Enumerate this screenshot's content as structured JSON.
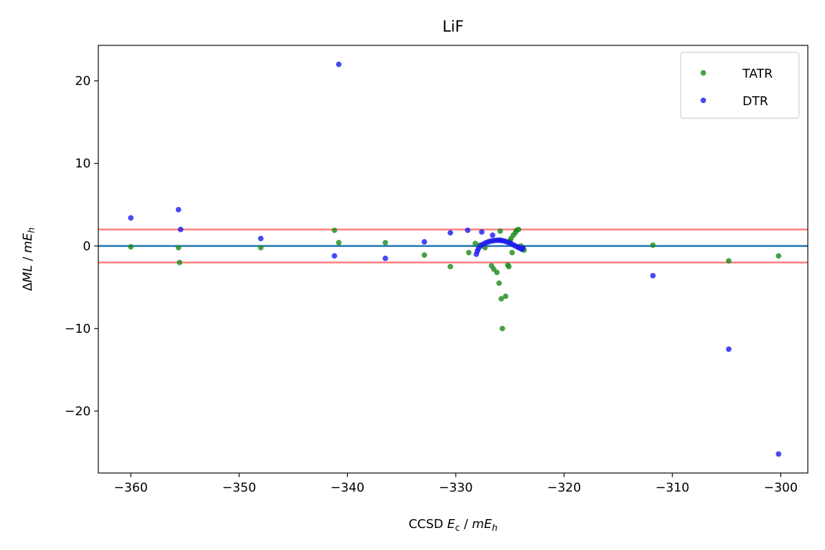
{
  "chart_data": {
    "type": "scatter",
    "title": "LiF",
    "xlabel": {
      "prefix": "CCSD ",
      "var": "E",
      "sub": "c",
      "suffix": " / ",
      "unit": "mE",
      "unit_sub": "h"
    },
    "ylabel": {
      "prefix": "Δ",
      "var": "ML",
      "suffix": " / ",
      "unit": "mE",
      "unit_sub": "h"
    },
    "xlim": [
      -363,
      -297.5
    ],
    "ylim": [
      -27.5,
      24.3
    ],
    "xticks": [
      -360,
      -350,
      -340,
      -330,
      -320,
      -310,
      -300
    ],
    "yticks": [
      -20,
      -10,
      0,
      10,
      20
    ],
    "xtick_labels": [
      "−360",
      "−350",
      "−340",
      "−330",
      "−320",
      "−310",
      "−300"
    ],
    "ytick_labels": [
      "−20",
      "−10",
      "0",
      "10",
      "20"
    ],
    "hlines": [
      {
        "y": 0,
        "color": "#1f77b4"
      },
      {
        "y": 2,
        "color": "#ff8080"
      },
      {
        "y": -2,
        "color": "#ff8080"
      }
    ],
    "legend_position": "top-right",
    "series": [
      {
        "name": "TATR",
        "color": "#1a8a1a",
        "points": [
          [
            -360.0,
            -0.1
          ],
          [
            -355.6,
            -0.2
          ],
          [
            -355.5,
            -2.0
          ],
          [
            -348.0,
            -0.2
          ],
          [
            -341.2,
            1.9
          ],
          [
            -340.8,
            0.4
          ],
          [
            -336.5,
            0.4
          ],
          [
            -332.9,
            -1.1
          ],
          [
            -330.5,
            -2.5
          ],
          [
            -328.8,
            -0.8
          ],
          [
            -328.2,
            0.3
          ],
          [
            -327.8,
            0.1
          ],
          [
            -327.3,
            -0.2
          ],
          [
            -326.7,
            -2.4
          ],
          [
            -326.5,
            -2.8
          ],
          [
            -326.2,
            -3.2
          ],
          [
            -326.0,
            -4.5
          ],
          [
            -325.8,
            -6.4
          ],
          [
            -325.7,
            -10.0
          ],
          [
            -325.4,
            -6.1
          ],
          [
            -325.2,
            -2.3
          ],
          [
            -325.1,
            -2.5
          ],
          [
            -325.9,
            1.8
          ],
          [
            -325.0,
            0.6
          ],
          [
            -324.9,
            0.9
          ],
          [
            -324.8,
            -0.8
          ],
          [
            -324.7,
            1.3
          ],
          [
            -324.5,
            1.6
          ],
          [
            -324.4,
            1.9
          ],
          [
            -324.2,
            2.0
          ],
          [
            -324.0,
            0.0
          ],
          [
            -323.8,
            -0.3
          ],
          [
            -323.7,
            -0.5
          ],
          [
            -311.8,
            0.1
          ],
          [
            -304.8,
            -1.8
          ],
          [
            -300.2,
            -1.2
          ]
        ]
      },
      {
        "name": "DTR",
        "color": "#1a1aee",
        "points": [
          [
            -360.0,
            3.4
          ],
          [
            -355.6,
            4.4
          ],
          [
            -355.4,
            2.0
          ],
          [
            -348.0,
            0.9
          ],
          [
            -341.2,
            -1.2
          ],
          [
            -340.8,
            22.0
          ],
          [
            -336.5,
            -1.5
          ],
          [
            -332.9,
            0.5
          ],
          [
            -330.5,
            1.6
          ],
          [
            -328.9,
            1.9
          ],
          [
            -327.6,
            1.7
          ],
          [
            -326.6,
            1.3
          ],
          [
            -325.9,
            0.7
          ],
          [
            -328.1,
            -1.0
          ],
          [
            -328.0,
            -0.6
          ],
          [
            -327.9,
            -0.3
          ],
          [
            -327.7,
            0.0
          ],
          [
            -327.5,
            0.2
          ],
          [
            -327.3,
            0.35
          ],
          [
            -327.1,
            0.45
          ],
          [
            -326.9,
            0.55
          ],
          [
            -326.7,
            0.6
          ],
          [
            -326.5,
            0.65
          ],
          [
            -326.3,
            0.68
          ],
          [
            -326.1,
            0.7
          ],
          [
            -325.9,
            0.68
          ],
          [
            -325.7,
            0.65
          ],
          [
            -325.5,
            0.6
          ],
          [
            -325.3,
            0.5
          ],
          [
            -325.1,
            0.4
          ],
          [
            -324.9,
            0.3
          ],
          [
            -324.7,
            0.15
          ],
          [
            -324.5,
            0.0
          ],
          [
            -324.3,
            -0.1
          ],
          [
            -324.2,
            -0.2
          ],
          [
            -324.0,
            -0.3
          ],
          [
            -323.9,
            -0.4
          ],
          [
            -323.8,
            -0.2
          ],
          [
            -311.8,
            -3.6
          ],
          [
            -304.8,
            -12.5
          ],
          [
            -300.2,
            -25.2
          ]
        ]
      }
    ]
  }
}
